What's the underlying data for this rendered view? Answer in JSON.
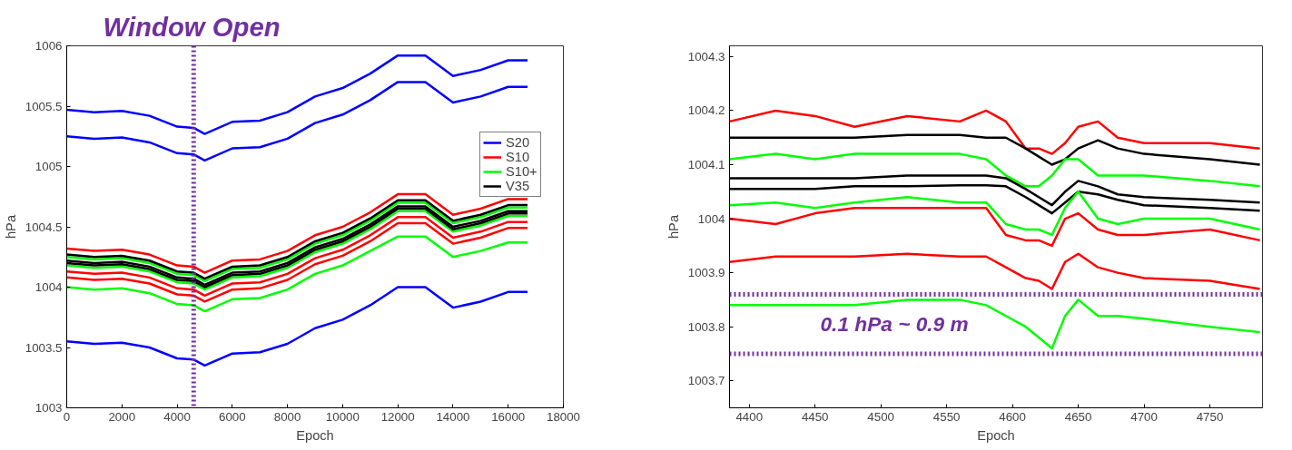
{
  "chart_data": [
    {
      "type": "line",
      "title": "Window Open",
      "xlabel": "Epoch",
      "ylabel": "hPa",
      "x": [
        0,
        1000,
        2000,
        3000,
        4000,
        4600,
        5000,
        6000,
        7000,
        8000,
        9000,
        10000,
        11000,
        12000,
        13000,
        14000,
        15000,
        16000,
        16700
      ],
      "xlim": [
        0,
        18000
      ],
      "xticks": [
        0,
        2000,
        4000,
        6000,
        8000,
        10000,
        12000,
        14000,
        16000,
        18000
      ],
      "ylim": [
        1003,
        1006
      ],
      "yticks": [
        1003,
        1003.5,
        1004,
        1004.5,
        1005,
        1005.5,
        1006
      ],
      "legend": "top right",
      "grid": false,
      "ref_lines": [
        {
          "axis": "x",
          "value": 4600,
          "color": "#7030a0",
          "line_style": "dotted"
        }
      ],
      "series": [
        {
          "name": "S20",
          "color": "#0000ff",
          "values": [
            1005.47,
            1005.45,
            1005.46,
            1005.42,
            1005.33,
            1005.32,
            1005.27,
            1005.37,
            1005.38,
            1005.45,
            1005.58,
            1005.65,
            1005.77,
            1005.92,
            1005.92,
            1005.75,
            1005.8,
            1005.88,
            1005.88
          ]
        },
        {
          "color": "#0000ff",
          "values": [
            1005.25,
            1005.23,
            1005.24,
            1005.2,
            1005.11,
            1005.1,
            1005.05,
            1005.15,
            1005.16,
            1005.23,
            1005.36,
            1005.43,
            1005.55,
            1005.7,
            1005.7,
            1005.53,
            1005.58,
            1005.66,
            1005.66
          ]
        },
        {
          "color": "#0000ff",
          "values": [
            1003.55,
            1003.53,
            1003.54,
            1003.5,
            1003.41,
            1003.4,
            1003.35,
            1003.45,
            1003.46,
            1003.53,
            1003.66,
            1003.73,
            1003.85,
            1004,
            1004,
            1003.83,
            1003.88,
            1003.96,
            1003.96
          ]
        },
        {
          "name": "S10",
          "color": "#ff0000",
          "values": [
            1004.32,
            1004.3,
            1004.31,
            1004.27,
            1004.18,
            1004.17,
            1004.12,
            1004.22,
            1004.23,
            1004.3,
            1004.43,
            1004.5,
            1004.62,
            1004.77,
            1004.77,
            1004.6,
            1004.65,
            1004.73,
            1004.73
          ]
        },
        {
          "color": "#ff0000",
          "values": [
            1004.13,
            1004.11,
            1004.12,
            1004.08,
            1003.99,
            1003.98,
            1003.93,
            1004.03,
            1004.04,
            1004.11,
            1004.24,
            1004.31,
            1004.43,
            1004.58,
            1004.58,
            1004.41,
            1004.46,
            1004.54,
            1004.54
          ]
        },
        {
          "color": "#ff0000",
          "values": [
            1004.08,
            1004.06,
            1004.07,
            1004.03,
            1003.94,
            1003.93,
            1003.88,
            1003.98,
            1003.99,
            1004.06,
            1004.19,
            1004.26,
            1004.38,
            1004.53,
            1004.53,
            1004.36,
            1004.41,
            1004.49,
            1004.49
          ]
        },
        {
          "name": "S10+",
          "color": "#00ff00",
          "values": [
            1004.25,
            1004.23,
            1004.24,
            1004.2,
            1004.11,
            1004.1,
            1004.05,
            1004.15,
            1004.16,
            1004.23,
            1004.36,
            1004.43,
            1004.55,
            1004.7,
            1004.7,
            1004.53,
            1004.58,
            1004.66,
            1004.66
          ]
        },
        {
          "color": "#00ff00",
          "values": [
            1004.18,
            1004.16,
            1004.17,
            1004.13,
            1004.04,
            1004.03,
            1003.98,
            1004.08,
            1004.09,
            1004.16,
            1004.29,
            1004.36,
            1004.48,
            1004.63,
            1004.63,
            1004.46,
            1004.51,
            1004.59,
            1004.59
          ]
        },
        {
          "color": "#00ff00",
          "values": [
            1004,
            1003.98,
            1003.99,
            1003.95,
            1003.86,
            1003.85,
            1003.8,
            1003.9,
            1003.91,
            1003.98,
            1004.11,
            1004.18,
            1004.3,
            1004.42,
            1004.42,
            1004.25,
            1004.3,
            1004.37,
            1004.37
          ]
        },
        {
          "name": "V35",
          "color": "#000000",
          "values": [
            1004.27,
            1004.25,
            1004.26,
            1004.22,
            1004.13,
            1004.12,
            1004.07,
            1004.17,
            1004.18,
            1004.25,
            1004.38,
            1004.45,
            1004.57,
            1004.72,
            1004.72,
            1004.55,
            1004.6,
            1004.68,
            1004.68
          ]
        },
        {
          "color": "#000000",
          "values": [
            1004.22,
            1004.2,
            1004.21,
            1004.17,
            1004.08,
            1004.07,
            1004.02,
            1004.12,
            1004.13,
            1004.2,
            1004.33,
            1004.4,
            1004.52,
            1004.67,
            1004.67,
            1004.5,
            1004.55,
            1004.63,
            1004.63
          ]
        },
        {
          "color": "#000000",
          "values": [
            1004.2,
            1004.18,
            1004.19,
            1004.15,
            1004.06,
            1004.05,
            1004,
            1004.1,
            1004.11,
            1004.18,
            1004.31,
            1004.38,
            1004.5,
            1004.65,
            1004.65,
            1004.48,
            1004.53,
            1004.61,
            1004.61
          ]
        }
      ]
    },
    {
      "type": "line",
      "xlabel": "Epoch",
      "ylabel": "hPa",
      "x": [
        4385,
        4420,
        4450,
        4480,
        4520,
        4560,
        4580,
        4595,
        4610,
        4620,
        4630,
        4640,
        4650,
        4665,
        4680,
        4700,
        4750,
        4788
      ],
      "xlim": [
        4385,
        4790
      ],
      "xticks": [
        4400,
        4450,
        4500,
        4550,
        4600,
        4650,
        4700,
        4750
      ],
      "ylim": [
        1003.65,
        1004.32
      ],
      "yticks": [
        1003.7,
        1003.8,
        1003.9,
        1004,
        1004.1,
        1004.2,
        1004.3
      ],
      "grid": false,
      "annotations": [
        "0.1 hPa ~ 0.9 m"
      ],
      "ref_lines": [
        {
          "axis": "y",
          "value": 1003.86,
          "color": "#7030a0",
          "line_style": "dotted"
        },
        {
          "axis": "y",
          "value": 1003.75,
          "color": "#7030a0",
          "line_style": "dotted"
        }
      ],
      "series": [
        {
          "color": "#ff0000",
          "values": [
            1004.18,
            1004.2,
            1004.19,
            1004.17,
            1004.19,
            1004.18,
            1004.2,
            1004.18,
            1004.13,
            1004.13,
            1004.12,
            1004.14,
            1004.17,
            1004.18,
            1004.15,
            1004.14,
            1004.14,
            1004.13
          ]
        },
        {
          "color": "#000000",
          "values": [
            1004.15,
            1004.15,
            1004.15,
            1004.15,
            1004.155,
            1004.155,
            1004.15,
            1004.15,
            1004.13,
            1004.115,
            1004.1,
            1004.11,
            1004.13,
            1004.145,
            1004.13,
            1004.12,
            1004.11,
            1004.1
          ]
        },
        {
          "color": "#00ff00",
          "values": [
            1004.11,
            1004.12,
            1004.11,
            1004.12,
            1004.12,
            1004.12,
            1004.11,
            1004.08,
            1004.06,
            1004.06,
            1004.08,
            1004.11,
            1004.11,
            1004.08,
            1004.08,
            1004.08,
            1004.07,
            1004.06
          ]
        },
        {
          "color": "#000000",
          "values": [
            1004.075,
            1004.075,
            1004.075,
            1004.075,
            1004.08,
            1004.08,
            1004.08,
            1004.075,
            1004.055,
            1004.04,
            1004.025,
            1004.05,
            1004.07,
            1004.06,
            1004.045,
            1004.04,
            1004.035,
            1004.03
          ]
        },
        {
          "color": "#000000",
          "values": [
            1004.055,
            1004.055,
            1004.055,
            1004.06,
            1004.06,
            1004.062,
            1004.062,
            1004.06,
            1004.04,
            1004.025,
            1004.01,
            1004.03,
            1004.05,
            1004.045,
            1004.035,
            1004.025,
            1004.02,
            1004.015
          ]
        },
        {
          "color": "#00ff00",
          "values": [
            1004.025,
            1004.03,
            1004.02,
            1004.03,
            1004.04,
            1004.03,
            1004.03,
            1003.99,
            1003.98,
            1003.98,
            1003.97,
            1004.02,
            1004.05,
            1004,
            1003.99,
            1004,
            1004,
            1003.98
          ]
        },
        {
          "color": "#ff0000",
          "values": [
            1004,
            1003.99,
            1004.01,
            1004.02,
            1004.02,
            1004.02,
            1004.02,
            1003.97,
            1003.96,
            1003.96,
            1003.95,
            1004,
            1004.01,
            1003.98,
            1003.97,
            1003.97,
            1003.98,
            1003.96
          ]
        },
        {
          "color": "#ff0000",
          "values": [
            1003.92,
            1003.93,
            1003.93,
            1003.93,
            1003.935,
            1003.93,
            1003.93,
            1003.91,
            1003.89,
            1003.885,
            1003.87,
            1003.92,
            1003.935,
            1003.91,
            1003.9,
            1003.89,
            1003.885,
            1003.87
          ]
        },
        {
          "color": "#00ff00",
          "values": [
            1003.84,
            1003.84,
            1003.84,
            1003.84,
            1003.85,
            1003.85,
            1003.84,
            1003.82,
            1003.8,
            1003.78,
            1003.76,
            1003.82,
            1003.85,
            1003.82,
            1003.82,
            1003.815,
            1003.8,
            1003.79
          ]
        }
      ]
    }
  ]
}
